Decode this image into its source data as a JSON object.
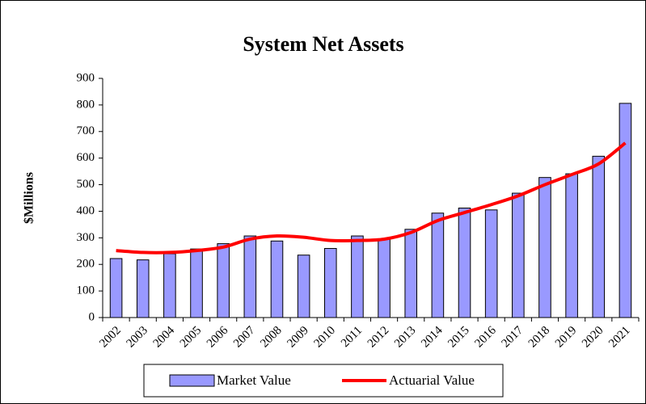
{
  "chart_data": {
    "type": "bar-line",
    "title": "System Net Assets",
    "y_label": "$Millions",
    "categories": [
      "2002",
      "2003",
      "2004",
      "2005",
      "2006",
      "2007",
      "2008",
      "2009",
      "2010",
      "2011",
      "2012",
      "2013",
      "2014",
      "2015",
      "2016",
      "2017",
      "2018",
      "2019",
      "2020",
      "2021"
    ],
    "series": [
      {
        "name": "Market Value",
        "type": "bar",
        "color": "#9999ff",
        "values": [
          222,
          217,
          240,
          258,
          278,
          307,
          288,
          235,
          260,
          307,
          295,
          332,
          393,
          412,
          405,
          468,
          527,
          541,
          607,
          806
        ]
      },
      {
        "name": "Actuarial Value",
        "type": "line",
        "color": "#ff0000",
        "values": [
          252,
          245,
          245,
          252,
          265,
          295,
          307,
          302,
          290,
          290,
          295,
          320,
          365,
          395,
          425,
          458,
          500,
          538,
          578,
          657
        ]
      }
    ],
    "ylim": [
      0,
      900
    ],
    "yticks": [
      0,
      100,
      200,
      300,
      400,
      500,
      600,
      700,
      800,
      900
    ],
    "legend": "bottom"
  }
}
